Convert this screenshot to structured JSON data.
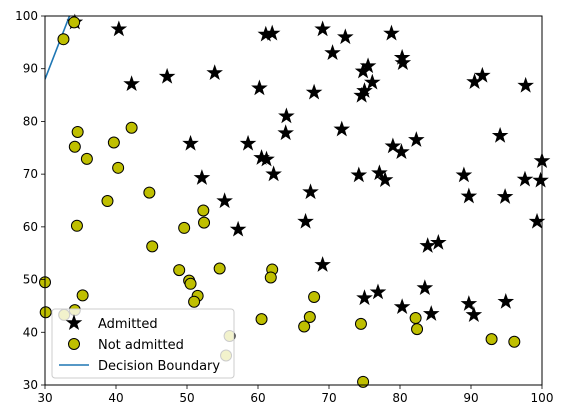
{
  "chart_data": {
    "type": "scatter",
    "title": "",
    "xlabel": "",
    "ylabel": "",
    "xlim": [
      30,
      100
    ],
    "ylim": [
      30,
      100
    ],
    "xticks": [
      "30",
      "40",
      "50",
      "60",
      "70",
      "80",
      "90",
      "100"
    ],
    "yticks": [
      "30",
      "40",
      "50",
      "60",
      "70",
      "80",
      "90",
      "100"
    ],
    "legend_position": "lower-left",
    "series": [
      {
        "name": "Admitted",
        "marker": "star",
        "color": "#000000",
        "points": [
          [
            40.4,
            97.5
          ],
          [
            34.2,
            98.8
          ],
          [
            42.2,
            87.1
          ],
          [
            47.2,
            88.5
          ],
          [
            53.9,
            89.2
          ],
          [
            61.1,
            96.5
          ],
          [
            62.0,
            96.7
          ],
          [
            64.0,
            81.0
          ],
          [
            63.9,
            77.8
          ],
          [
            60.2,
            86.3
          ],
          [
            67.9,
            85.5
          ],
          [
            69.1,
            97.5
          ],
          [
            70.5,
            93.0
          ],
          [
            72.3,
            96.0
          ],
          [
            74.8,
            89.5
          ],
          [
            75.5,
            90.5
          ],
          [
            76.1,
            87.4
          ],
          [
            74.6,
            84.9
          ],
          [
            75.0,
            85.8
          ],
          [
            78.8,
            96.7
          ],
          [
            80.3,
            92.1
          ],
          [
            80.4,
            91.1
          ],
          [
            90.5,
            87.5
          ],
          [
            91.6,
            88.7
          ],
          [
            97.7,
            86.8
          ],
          [
            50.5,
            75.8
          ],
          [
            52.1,
            69.3
          ],
          [
            58.6,
            75.8
          ],
          [
            60.5,
            73.1
          ],
          [
            61.2,
            72.8
          ],
          [
            62.2,
            70.0
          ],
          [
            71.8,
            78.5
          ],
          [
            74.2,
            69.8
          ],
          [
            77.1,
            70.2
          ],
          [
            77.9,
            68.9
          ],
          [
            79.0,
            75.3
          ],
          [
            80.2,
            74.2
          ],
          [
            82.3,
            76.5
          ],
          [
            94.1,
            77.3
          ],
          [
            100.0,
            72.5
          ],
          [
            89.0,
            69.8
          ],
          [
            97.6,
            69.0
          ],
          [
            99.8,
            68.8
          ],
          [
            89.7,
            65.8
          ],
          [
            94.8,
            65.7
          ],
          [
            99.3,
            61.0
          ],
          [
            55.3,
            64.9
          ],
          [
            57.2,
            59.5
          ],
          [
            66.7,
            61.0
          ],
          [
            67.4,
            66.6
          ],
          [
            69.1,
            52.8
          ],
          [
            83.9,
            56.4
          ],
          [
            85.4,
            57.0
          ],
          [
            75.0,
            46.5
          ],
          [
            76.9,
            47.6
          ],
          [
            83.5,
            48.4
          ],
          [
            80.3,
            44.8
          ],
          [
            84.4,
            43.5
          ],
          [
            89.7,
            45.4
          ],
          [
            90.4,
            43.3
          ],
          [
            94.9,
            45.8
          ]
        ]
      },
      {
        "name": "Not admitted",
        "marker": "circle",
        "color": "#bfbf00",
        "points": [
          [
            34.1,
            98.8
          ],
          [
            32.6,
            95.6
          ],
          [
            34.6,
            78.0
          ],
          [
            34.2,
            75.2
          ],
          [
            35.9,
            72.9
          ],
          [
            42.2,
            78.8
          ],
          [
            39.7,
            76.0
          ],
          [
            40.3,
            71.2
          ],
          [
            38.8,
            64.9
          ],
          [
            34.5,
            60.2
          ],
          [
            44.7,
            66.5
          ],
          [
            45.1,
            56.3
          ],
          [
            49.6,
            59.8
          ],
          [
            52.3,
            63.1
          ],
          [
            52.4,
            60.8
          ],
          [
            48.9,
            51.8
          ],
          [
            30.0,
            49.5
          ],
          [
            50.3,
            49.8
          ],
          [
            50.5,
            49.2
          ],
          [
            54.6,
            52.1
          ],
          [
            62.0,
            51.9
          ],
          [
            61.8,
            50.4
          ],
          [
            35.3,
            47.0
          ],
          [
            51.5,
            46.9
          ],
          [
            51.0,
            45.8
          ],
          [
            67.9,
            46.7
          ],
          [
            30.1,
            43.8
          ],
          [
            32.7,
            43.3
          ],
          [
            34.2,
            44.2
          ],
          [
            60.5,
            42.5
          ],
          [
            67.3,
            42.9
          ],
          [
            66.5,
            41.1
          ],
          [
            74.5,
            41.6
          ],
          [
            82.2,
            42.7
          ],
          [
            82.4,
            40.6
          ],
          [
            56.0,
            39.3
          ],
          [
            55.5,
            35.6
          ],
          [
            92.9,
            38.7
          ],
          [
            96.1,
            38.2
          ],
          [
            74.8,
            30.6
          ]
        ]
      },
      {
        "name": "Decision Boundary",
        "marker": "line",
        "color": "#1f77b4",
        "x": [
          30.0,
          33.45
        ],
        "y": [
          88.0,
          100.0
        ]
      }
    ]
  }
}
